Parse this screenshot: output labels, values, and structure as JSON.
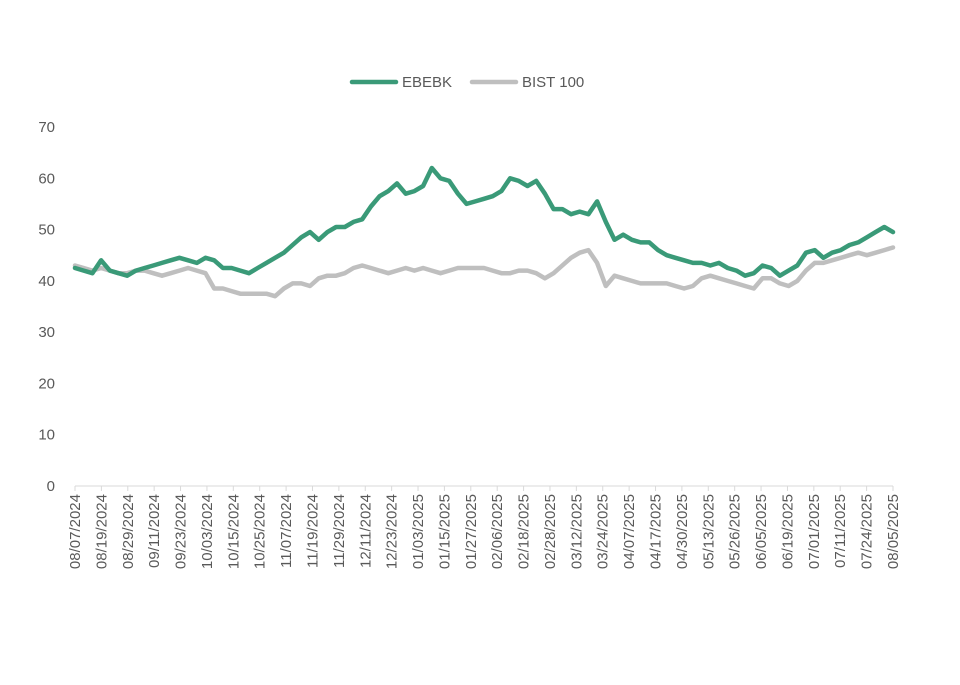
{
  "chart_data": {
    "type": "line",
    "title": "",
    "xlabel": "",
    "ylabel": "",
    "ylim": [
      0,
      70
    ],
    "y_ticks": [
      "0",
      "10",
      "20",
      "30",
      "40",
      "50",
      "60",
      "70"
    ],
    "x_tick_labels": [
      "08/07/2024",
      "08/19/2024",
      "08/29/2024",
      "09/11/2024",
      "09/23/2024",
      "10/03/2024",
      "10/15/2024",
      "10/25/2024",
      "11/07/2024",
      "11/19/2024",
      "11/29/2024",
      "12/11/2024",
      "12/23/2024",
      "01/03/2025",
      "01/15/2025",
      "01/27/2025",
      "02/06/2025",
      "02/18/2025",
      "02/28/2025",
      "03/12/2025",
      "03/24/2025",
      "04/07/2025",
      "04/17/2025",
      "04/30/2025",
      "05/13/2025",
      "05/26/2025",
      "06/05/2025",
      "06/19/2025",
      "07/01/2025",
      "07/11/2025",
      "07/24/2025",
      "08/05/2025"
    ],
    "grid": false,
    "legend": "top-center",
    "series": [
      {
        "name": "EBEBK",
        "color": "#3a9a78",
        "values": [
          42.5,
          42.0,
          41.5,
          44.0,
          42.0,
          41.5,
          41.0,
          42.0,
          42.5,
          43.0,
          43.5,
          44.0,
          44.5,
          44.0,
          43.5,
          44.5,
          44.0,
          42.5,
          42.5,
          42.0,
          41.5,
          42.5,
          43.5,
          44.5,
          45.5,
          47.0,
          48.5,
          49.5,
          48.0,
          49.5,
          50.5,
          50.5,
          51.5,
          52.0,
          54.5,
          56.5,
          57.5,
          59.0,
          57.0,
          57.5,
          58.5,
          62.0,
          60.0,
          59.5,
          57.0,
          55.0,
          55.5,
          56.0,
          56.5,
          57.5,
          60.0,
          59.5,
          58.5,
          59.5,
          57.0,
          54.0,
          54.0,
          53.0,
          53.5,
          53.0,
          55.5,
          51.5,
          48.0,
          49.0,
          48.0,
          47.5,
          47.5,
          46.0,
          45.0,
          44.5,
          44.0,
          43.5,
          43.5,
          43.0,
          43.5,
          42.5,
          42.0,
          41.0,
          41.5,
          43.0,
          42.5,
          41.0,
          42.0,
          43.0,
          45.5,
          46.0,
          44.5,
          45.5,
          46.0,
          47.0,
          47.5,
          48.5,
          49.5,
          50.5,
          49.5
        ]
      },
      {
        "name": "BIST 100",
        "color": "#bfbfbf",
        "values": [
          43.0,
          42.5,
          42.0,
          42.5,
          42.0,
          41.5,
          41.5,
          42.0,
          42.0,
          41.5,
          41.0,
          41.5,
          42.0,
          42.5,
          42.0,
          41.5,
          38.5,
          38.5,
          38.0,
          37.5,
          37.5,
          37.5,
          37.5,
          37.0,
          38.5,
          39.5,
          39.5,
          39.0,
          40.5,
          41.0,
          41.0,
          41.5,
          42.5,
          43.0,
          42.5,
          42.0,
          41.5,
          42.0,
          42.5,
          42.0,
          42.5,
          42.0,
          41.5,
          42.0,
          42.5,
          42.5,
          42.5,
          42.5,
          42.0,
          41.5,
          41.5,
          42.0,
          42.0,
          41.5,
          40.5,
          41.5,
          43.0,
          44.5,
          45.5,
          46.0,
          43.5,
          39.0,
          41.0,
          40.5,
          40.0,
          39.5,
          39.5,
          39.5,
          39.5,
          39.0,
          38.5,
          39.0,
          40.5,
          41.0,
          40.5,
          40.0,
          39.5,
          39.0,
          38.5,
          40.5,
          40.5,
          39.5,
          39.0,
          40.0,
          42.0,
          43.5,
          43.5,
          44.0,
          44.5,
          45.0,
          45.5,
          45.0,
          45.5,
          46.0,
          46.5
        ]
      }
    ]
  }
}
